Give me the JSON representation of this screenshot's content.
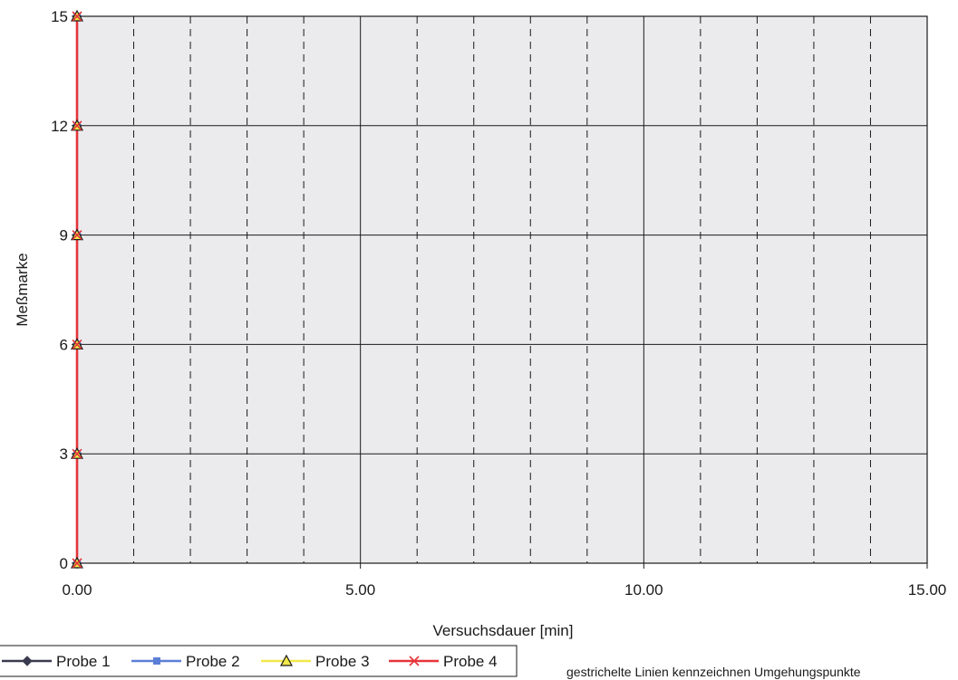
{
  "chart_data": {
    "type": "line",
    "title": "",
    "xlabel": "Versuchsdauer [min]",
    "ylabel": "Meßmarke",
    "xlim": [
      0,
      15
    ],
    "ylim": [
      0,
      15
    ],
    "x_ticks": [
      "0.00",
      "5.00",
      "10.00",
      "15.00"
    ],
    "x_tick_values": [
      0,
      5,
      10,
      15
    ],
    "y_ticks": [
      "0",
      "3",
      "6",
      "9",
      "12",
      "15"
    ],
    "y_tick_values": [
      0,
      3,
      6,
      9,
      12,
      15
    ],
    "major_grid_x": [
      5,
      10
    ],
    "minor_dashed_grid_x": [
      1,
      2,
      3,
      4,
      6,
      7,
      8,
      9,
      11,
      12,
      13,
      14
    ],
    "grid": true,
    "legend_position": "bottom-left",
    "series": [
      {
        "name": "Probe 1",
        "color": "#3a3a50",
        "marker": "diamond",
        "x": [
          0,
          0,
          0,
          0,
          0,
          0
        ],
        "y": [
          0,
          3,
          6,
          9,
          12,
          15
        ]
      },
      {
        "name": "Probe 2",
        "color": "#5b7fd6",
        "marker": "square",
        "x": [
          0,
          0,
          0,
          0,
          0,
          0
        ],
        "y": [
          0,
          3,
          6,
          9,
          12,
          15
        ]
      },
      {
        "name": "Probe 3",
        "color": "#f2e84a",
        "marker": "triangle",
        "x": [
          0,
          0,
          0,
          0,
          0,
          0
        ],
        "y": [
          0,
          3,
          6,
          9,
          12,
          15
        ]
      },
      {
        "name": "Probe 4",
        "color": "#e5353a",
        "marker": "x",
        "x": [
          0,
          0,
          0,
          0,
          0,
          0
        ],
        "y": [
          0,
          3,
          6,
          9,
          12,
          15
        ]
      }
    ],
    "note": "gestrichelte Linien kennzeichnen Umgehungspunkte",
    "plot_background": "#ebebee"
  }
}
